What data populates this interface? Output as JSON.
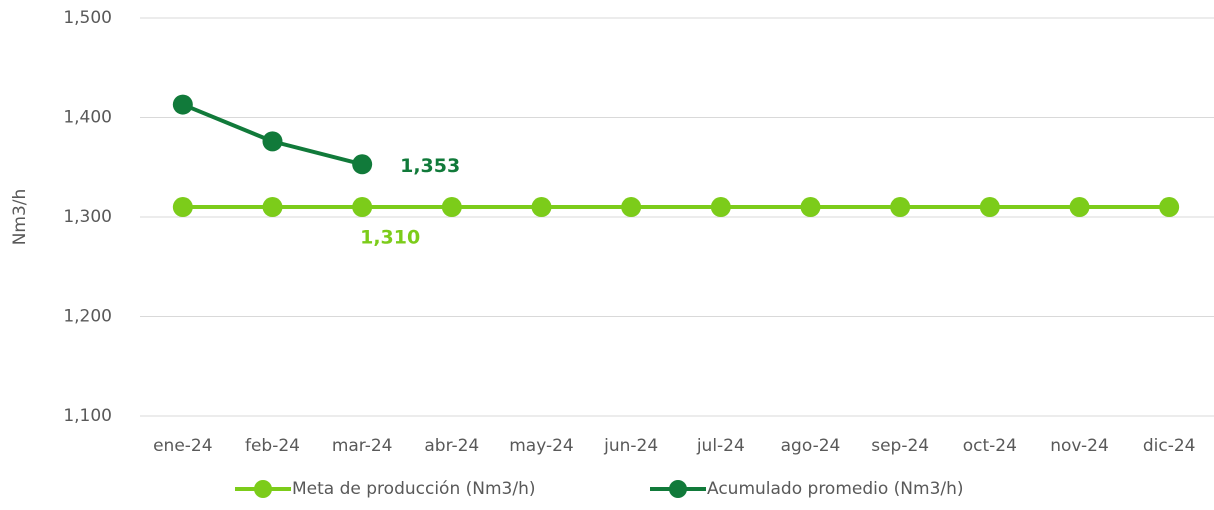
{
  "chart_data": {
    "type": "line",
    "y_label": "Nm3/h",
    "categories": [
      "ene-24",
      "feb-24",
      "mar-24",
      "abr-24",
      "may-24",
      "jun-24",
      "jul-24",
      "ago-24",
      "sep-24",
      "oct-24",
      "nov-24",
      "dic-24"
    ],
    "series": [
      {
        "name": "Meta de producción (Nm3/h)",
        "color": "#7ccc1a",
        "values": [
          1310,
          1310,
          1310,
          1310,
          1310,
          1310,
          1310,
          1310,
          1310,
          1310,
          1310,
          1310
        ],
        "value_labels": [
          null,
          null,
          "1,310",
          null,
          null,
          null,
          null,
          null,
          null,
          null,
          null,
          null
        ]
      },
      {
        "name": "Acumulado promedio (Nm3/h)",
        "color": "#117a3a",
        "values": [
          1413,
          1376,
          1353,
          null,
          null,
          null,
          null,
          null,
          null,
          null,
          null,
          null
        ],
        "value_labels": [
          null,
          null,
          "1,353",
          null,
          null,
          null,
          null,
          null,
          null,
          null,
          null,
          null
        ]
      }
    ],
    "ylim": [
      1100,
      1500
    ],
    "yticks": [
      {
        "value": 1100,
        "label": "1,100"
      },
      {
        "value": 1200,
        "label": "1,200"
      },
      {
        "value": 1300,
        "label": "1,300"
      },
      {
        "value": 1400,
        "label": "1,400"
      },
      {
        "value": 1500,
        "label": "1,500"
      }
    ],
    "grid": true,
    "legend": "bottom"
  }
}
